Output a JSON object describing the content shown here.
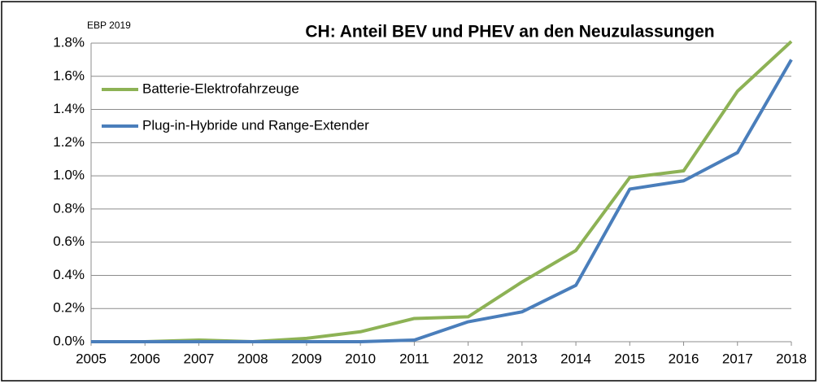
{
  "chart_data": {
    "type": "line",
    "title": "CH: Anteil BEV und PHEV an den Neuzulassungen",
    "annotation": "EBP 2019",
    "x": [
      2005,
      2006,
      2007,
      2008,
      2009,
      2010,
      2011,
      2012,
      2013,
      2014,
      2015,
      2016,
      2017,
      2018
    ],
    "xlim": [
      2005,
      2018
    ],
    "xticks": [
      2005,
      2006,
      2007,
      2008,
      2009,
      2010,
      2011,
      2012,
      2013,
      2014,
      2015,
      2016,
      2017,
      2018
    ],
    "ylim": [
      0,
      1.8
    ],
    "yticks": [
      {
        "value": 0,
        "label": "0.0%"
      },
      {
        "value": 0.2,
        "label": "0.2%"
      },
      {
        "value": 0.4,
        "label": "0.4%"
      },
      {
        "value": 0.6,
        "label": "0.6%"
      },
      {
        "value": 0.8,
        "label": "0.8%"
      },
      {
        "value": 1.0,
        "label": "1.0%"
      },
      {
        "value": 1.2,
        "label": "1.2%"
      },
      {
        "value": 1.4,
        "label": "1.4%"
      },
      {
        "value": 1.6,
        "label": "1.6%"
      },
      {
        "value": 1.8,
        "label": "1.8%"
      }
    ],
    "grid": true,
    "legend": "upper left",
    "series": [
      {
        "name": "Batterie-Elektrofahrzeuge",
        "color": "#8db255",
        "values": [
          0,
          0,
          0.01,
          0,
          0.02,
          0.06,
          0.14,
          0.15,
          0.36,
          0.55,
          0.99,
          1.03,
          1.51,
          1.81
        ]
      },
      {
        "name": "Plug-in-Hybride und Range-Extender",
        "color": "#4a7ebb",
        "values": [
          0,
          0,
          0,
          0,
          0,
          0,
          0.01,
          0.12,
          0.18,
          0.34,
          0.92,
          0.97,
          1.14,
          1.7
        ]
      }
    ]
  }
}
